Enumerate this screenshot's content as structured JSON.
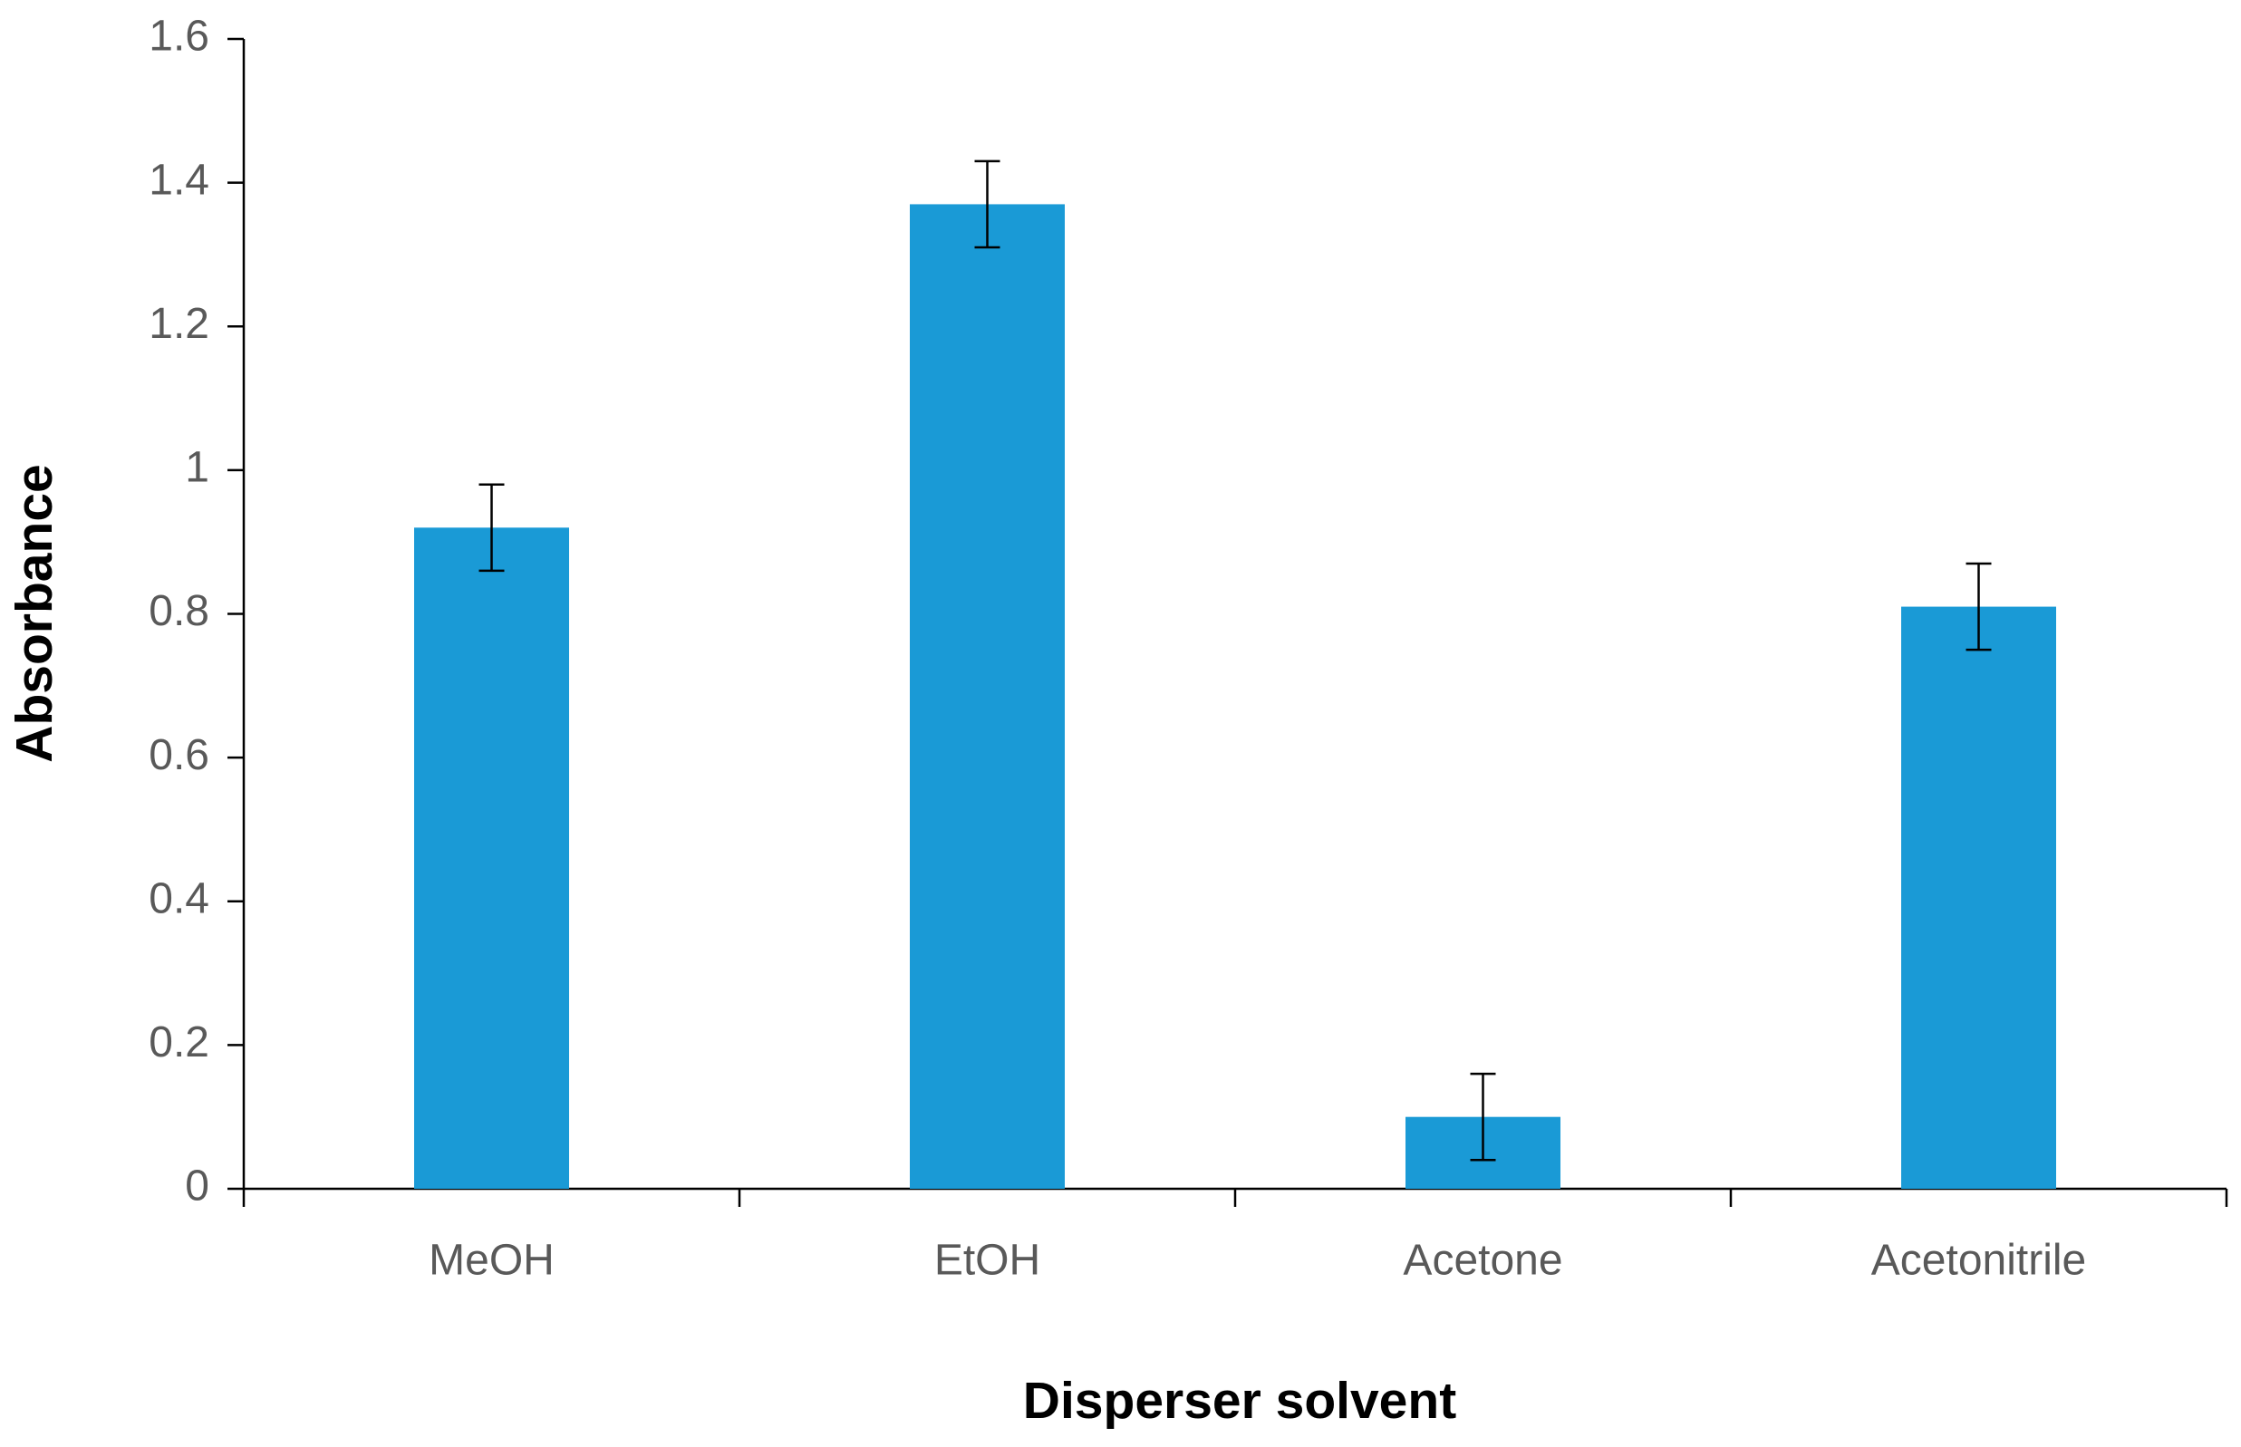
{
  "chart_data": {
    "type": "bar",
    "x_label": "Disperser solvent",
    "y_label": "Absorbance",
    "categories": [
      "MeOH",
      "EtOH",
      "Acetone",
      "Acetonitrile"
    ],
    "values": [
      0.92,
      1.37,
      0.1,
      0.81
    ],
    "errors": [
      0.06,
      0.06,
      0.06,
      0.06
    ],
    "color": "#1a9ad6",
    "ylim": [
      0,
      1.6
    ],
    "yticks": [
      0,
      0.2,
      0.4,
      0.6,
      0.8,
      1,
      1.2,
      1.4,
      1.6
    ],
    "grid": false
  }
}
